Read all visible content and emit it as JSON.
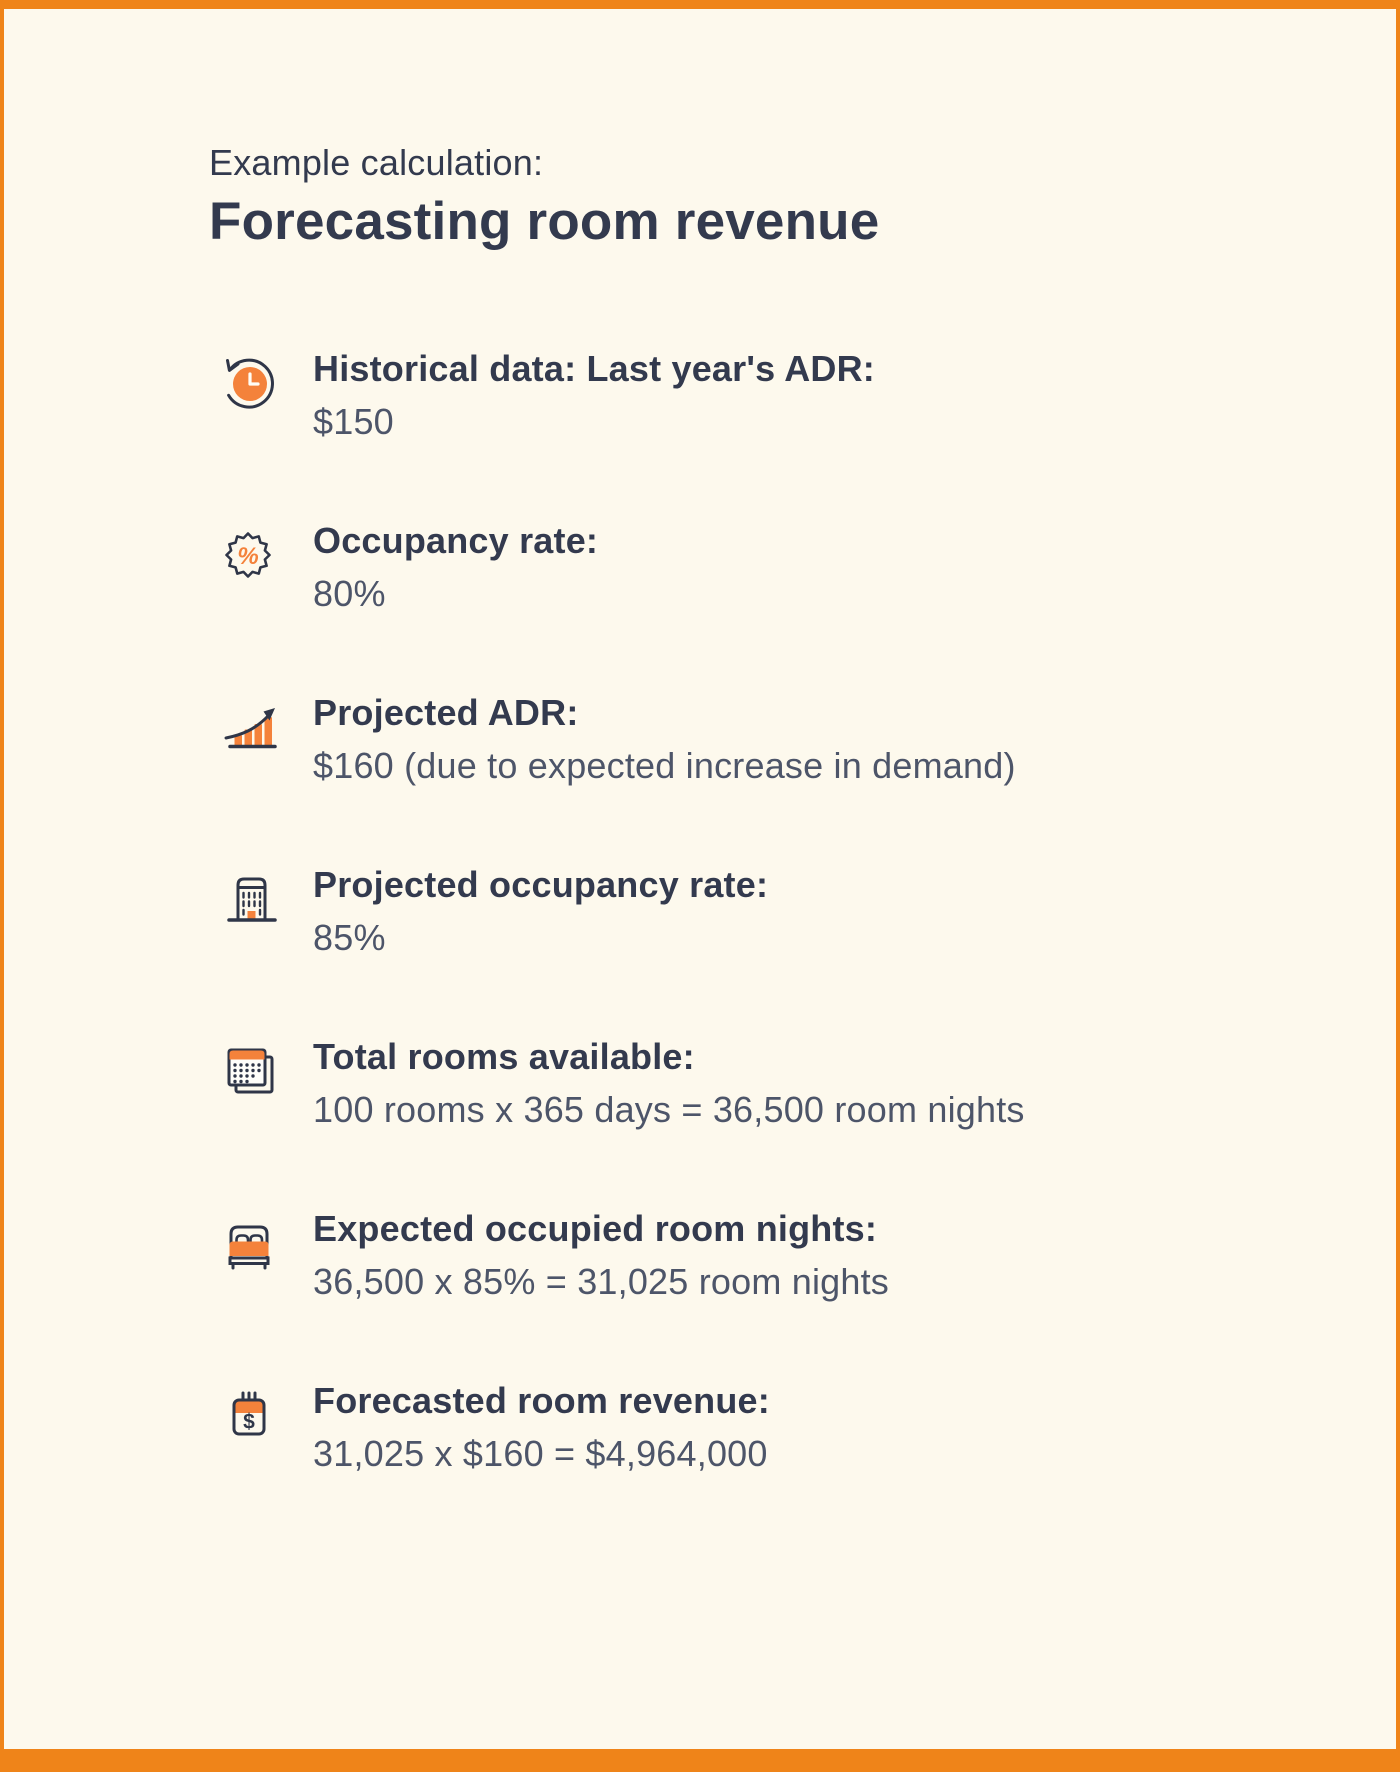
{
  "header": {
    "title_prefix": "Example calculation:",
    "title": "Forecasting room revenue"
  },
  "steps": [
    {
      "icon": "history-clock-icon",
      "label": "Historical data: Last year's ADR:",
      "value": "$150"
    },
    {
      "icon": "percent-badge-icon",
      "label": "Occupancy rate:",
      "value": "80%"
    },
    {
      "icon": "growth-chart-icon",
      "label": "Projected ADR:",
      "value": "$160 (due to expected increase in demand)"
    },
    {
      "icon": "building-icon",
      "label": "Projected occupancy rate:",
      "value": "85%"
    },
    {
      "icon": "calendar-pages-icon",
      "label": "Total rooms available:",
      "value": "100 rooms x 365 days = 36,500 room nights"
    },
    {
      "icon": "bed-icon",
      "label": "Expected occupied room nights:",
      "value": "36,500 x 85% = 31,025 room nights"
    },
    {
      "icon": "calendar-dollar-icon",
      "label": "Forecasted room revenue:",
      "value": "31,025 x $160 = $4,964,000"
    }
  ],
  "colors": {
    "background": "#FDF9ED",
    "border_orange": "#EF8419",
    "icon_orange": "#F4823B",
    "icon_stroke": "#2F3648",
    "heading_text": "#333A4E",
    "value_text": "#4D5569"
  }
}
